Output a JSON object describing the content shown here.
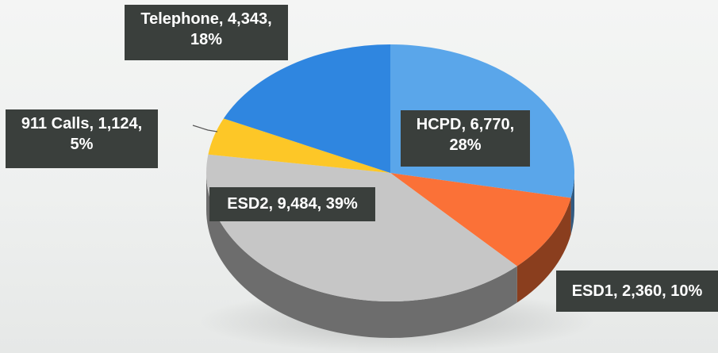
{
  "chart_data": {
    "type": "pie",
    "title": "",
    "slices": [
      {
        "label": "HCPD",
        "value": 6770,
        "percent": 28,
        "color": "#5aa6ea",
        "text": "HCPD, 6,770, 28%"
      },
      {
        "label": "ESD1",
        "value": 2360,
        "percent": 10,
        "color": "#fb7137",
        "text": "ESD1, 2,360, 10%"
      },
      {
        "label": "ESD2",
        "value": 9484,
        "percent": 39,
        "color": "#c6c6c6",
        "text": "ESD2, 9,484, 39%"
      },
      {
        "label": "911 Calls",
        "value": 1124,
        "percent": 5,
        "color": "#fdc727",
        "text": "911 Calls, 1,124, 5%"
      },
      {
        "label": "Telephone",
        "value": 4343,
        "percent": 18,
        "color": "#2f86e0",
        "text": "Telephone, 4,343, 18%"
      }
    ],
    "legend": "none",
    "data_labels": "value and percent"
  },
  "labels": {
    "telephone": "Telephone, 4,343,\n18%",
    "calls911": "911 Calls, 1,124,\n5%",
    "hcpd": "HCPD, 6,770,\n28%",
    "esd2": "ESD2, 9,484, 39%",
    "esd1": "ESD1, 2,360, 10%"
  }
}
